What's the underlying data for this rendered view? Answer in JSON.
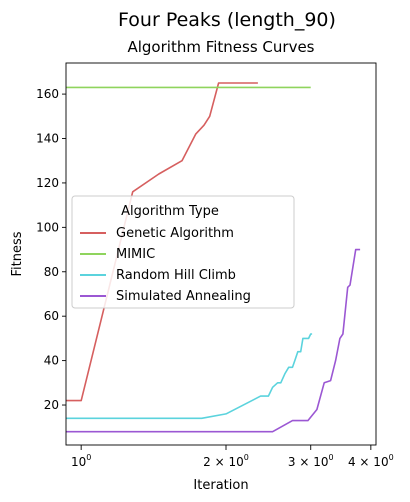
{
  "chart_data": {
    "type": "line",
    "suptitle": "Four Peaks (length_90)",
    "title": "Algorithm Fitness Curves",
    "xlabel": "Iteration",
    "ylabel": "Fitness",
    "xscale": "log",
    "xlim": [
      0.93,
      4.1
    ],
    "ylim": [
      2,
      174
    ],
    "xticks": [
      {
        "value": 1,
        "base": "10",
        "exp": "0"
      },
      {
        "value": 2,
        "base": "2 × 10",
        "exp": "0"
      },
      {
        "value": 3,
        "base": "3 × 10",
        "exp": "0"
      },
      {
        "value": 4,
        "base": "4 × 10",
        "exp": "0"
      }
    ],
    "yticks": [
      20,
      40,
      60,
      80,
      100,
      120,
      140,
      160
    ],
    "legend": {
      "title": "Algorithm Type",
      "position": "center-left"
    },
    "series": [
      {
        "name": "Genetic Algorithm",
        "color": "#d65f5f",
        "points": [
          [
            0.93,
            22
          ],
          [
            1.0,
            22
          ],
          [
            1.28,
            116
          ],
          [
            1.45,
            124
          ],
          [
            1.62,
            130
          ],
          [
            1.73,
            142
          ],
          [
            1.8,
            146
          ],
          [
            1.85,
            150
          ],
          [
            1.93,
            165
          ],
          [
            2.33,
            165
          ]
        ]
      },
      {
        "name": "MIMIC",
        "color": "#8fd45d",
        "points": [
          [
            0.93,
            163
          ],
          [
            3.0,
            163
          ]
        ]
      },
      {
        "name": "Random Hill Climb",
        "color": "#5bd3dd",
        "points": [
          [
            0.93,
            14
          ],
          [
            1.78,
            14
          ],
          [
            2.0,
            16
          ],
          [
            2.36,
            24
          ],
          [
            2.45,
            24
          ],
          [
            2.5,
            28
          ],
          [
            2.56,
            30
          ],
          [
            2.6,
            30
          ],
          [
            2.65,
            34
          ],
          [
            2.7,
            37
          ],
          [
            2.75,
            37
          ],
          [
            2.78,
            40
          ],
          [
            2.82,
            44
          ],
          [
            2.86,
            44
          ],
          [
            2.89,
            50
          ],
          [
            2.97,
            50
          ],
          [
            3.0,
            52
          ],
          [
            3.02,
            52
          ]
        ]
      },
      {
        "name": "Simulated Annealing",
        "color": "#9b57d3",
        "points": [
          [
            0.93,
            8
          ],
          [
            2.5,
            8
          ],
          [
            2.75,
            13
          ],
          [
            2.96,
            13
          ],
          [
            3.09,
            18
          ],
          [
            3.2,
            30
          ],
          [
            3.3,
            31
          ],
          [
            3.38,
            40
          ],
          [
            3.45,
            50
          ],
          [
            3.5,
            52
          ],
          [
            3.58,
            73
          ],
          [
            3.62,
            74
          ],
          [
            3.72,
            90
          ],
          [
            3.8,
            90
          ]
        ]
      }
    ]
  }
}
